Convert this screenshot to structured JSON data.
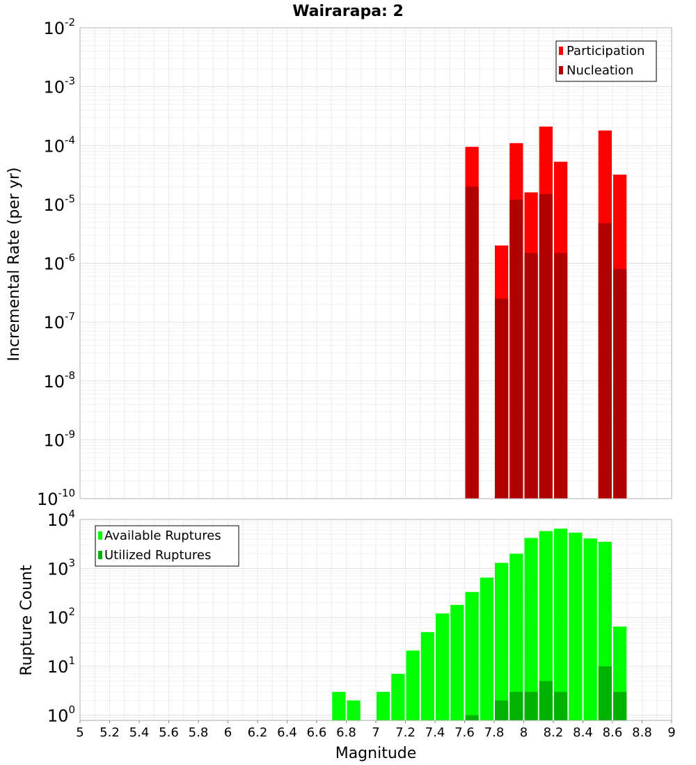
{
  "chart_data": {
    "type": "bar",
    "title": "Wairarapa: 2",
    "xlabel": "Magnitude",
    "x_range": [
      5,
      9
    ],
    "x_ticks": [
      "5",
      "5.2",
      "5.4",
      "5.6",
      "5.8",
      "6",
      "6.2",
      "6.4",
      "6.6",
      "6.8",
      "7",
      "7.2",
      "7.4",
      "7.6",
      "7.8",
      "8",
      "8.2",
      "8.4",
      "8.6",
      "8.8",
      "9"
    ],
    "bin_width": 0.1,
    "panels": [
      {
        "id": "rate",
        "ylabel": "Incremental Rate (per yr)",
        "yscale": "log",
        "ylim": [
          1e-10,
          0.01
        ],
        "y_ticks": [
          {
            "base": "10",
            "exp": "-10",
            "value": 1e-10
          },
          {
            "base": "10",
            "exp": "-9",
            "value": 1e-09
          },
          {
            "base": "10",
            "exp": "-8",
            "value": 1e-08
          },
          {
            "base": "10",
            "exp": "-7",
            "value": 1e-07
          },
          {
            "base": "10",
            "exp": "-6",
            "value": 1e-06
          },
          {
            "base": "10",
            "exp": "-5",
            "value": 1e-05
          },
          {
            "base": "10",
            "exp": "-4",
            "value": 0.0001
          },
          {
            "base": "10",
            "exp": "-3",
            "value": 0.001
          },
          {
            "base": "10",
            "exp": "-2",
            "value": 0.01
          }
        ],
        "legend_position": "top-right",
        "series": [
          {
            "name": "Participation",
            "color": "#ff0000",
            "x": [
              7.65,
              7.85,
              7.95,
              8.05,
              8.15,
              8.25,
              8.55,
              8.65
            ],
            "values": [
              9.5e-05,
              2e-06,
              0.00011,
              1.6e-05,
              0.00021,
              5.3e-05,
              0.00018,
              3.2e-05
            ]
          },
          {
            "name": "Nucleation",
            "color": "#b20000",
            "x": [
              7.65,
              7.85,
              7.95,
              8.05,
              8.15,
              8.25,
              8.55,
              8.65
            ],
            "values": [
              2e-05,
              2.5e-07,
              1.2e-05,
              1.5e-06,
              1.5e-05,
              1.5e-06,
              4.8e-06,
              8e-07
            ]
          }
        ]
      },
      {
        "id": "count",
        "ylabel": "Rupture Count",
        "yscale": "log",
        "ylim": [
          0.78,
          10000
        ],
        "y_ticks": [
          {
            "base": "10",
            "exp": "0",
            "value": 1
          },
          {
            "base": "10",
            "exp": "1",
            "value": 10
          },
          {
            "base": "10",
            "exp": "2",
            "value": 100
          },
          {
            "base": "10",
            "exp": "3",
            "value": 1000
          },
          {
            "base": "10",
            "exp": "4",
            "value": 10000
          }
        ],
        "legend_position": "top-left",
        "series": [
          {
            "name": "Available Ruptures",
            "color": "#00ff00",
            "x": [
              6.75,
              6.85,
              7.05,
              7.15,
              7.25,
              7.35,
              7.45,
              7.55,
              7.65,
              7.75,
              7.85,
              7.95,
              8.05,
              8.15,
              8.25,
              8.35,
              8.45,
              8.55,
              8.65
            ],
            "values": [
              3,
              2,
              3,
              7,
              21,
              50,
              120,
              180,
              330,
              650,
              1300,
              2000,
              4200,
              5800,
              6500,
              5400,
              4100,
              3500,
              65
            ]
          },
          {
            "name": "Utilized Ruptures",
            "color": "#00b200",
            "x": [
              7.65,
              7.85,
              7.95,
              8.05,
              8.15,
              8.25,
              8.55,
              8.65
            ],
            "values": [
              1,
              2,
              3,
              3,
              5,
              3,
              10,
              3
            ]
          }
        ]
      }
    ]
  }
}
